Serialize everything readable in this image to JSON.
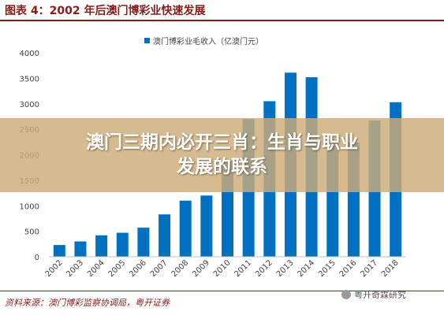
{
  "figure": {
    "title": "图表 4：2002 年后澳门博彩业快速发展",
    "source": "资料来源：澳门博彩监察协调局，粤开证券",
    "watermark": "粤开奇霖研究"
  },
  "overlay": {
    "line1": "澳门三期内必开三肖：生肖与职业",
    "line2": "发展的联系"
  },
  "colors": {
    "bar": "#0070c0",
    "title": "#8b1a1a"
  },
  "chart_data": {
    "type": "bar",
    "categories": [
      "2002",
      "2003",
      "2004",
      "2005",
      "2006",
      "2007",
      "2008",
      "2009",
      "2010",
      "2011",
      "2012",
      "2013",
      "2014",
      "2015",
      "2016",
      "2017",
      "2018"
    ],
    "series": [
      {
        "name": "澳门博彩业毛收入（亿澳门元）",
        "values": [
          230,
          300,
          420,
          470,
          570,
          830,
          1100,
          1200,
          1880,
          2700,
          3050,
          3610,
          3520,
          2300,
          2240,
          2670,
          3030
        ]
      }
    ],
    "yticks": [
      "0",
      "500",
      "1000",
      "1500",
      "2000",
      "2500",
      "3000",
      "3500",
      "4000"
    ],
    "ylim": [
      0,
      4000
    ],
    "legend": "top-center",
    "grid": false
  }
}
